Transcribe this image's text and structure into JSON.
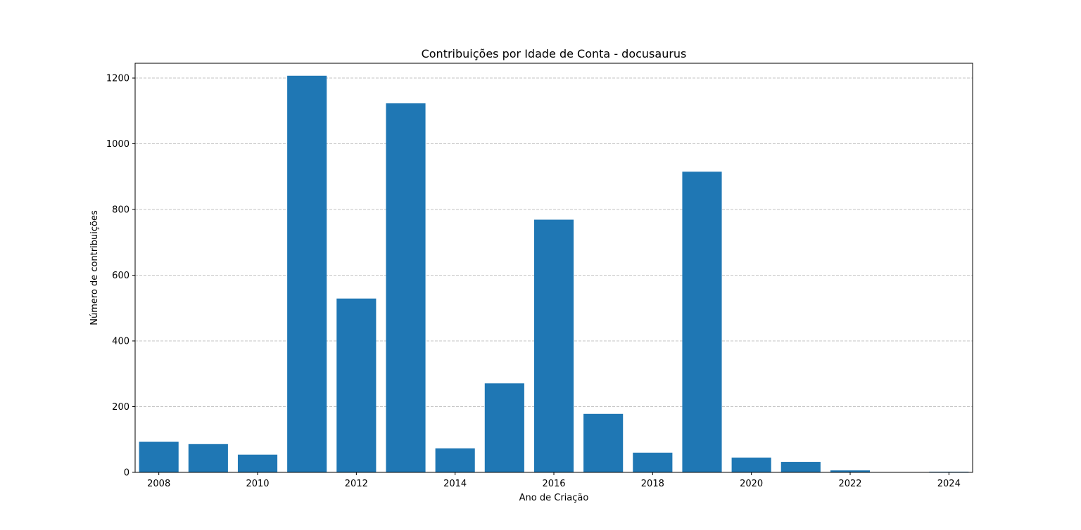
{
  "chart_data": {
    "type": "bar",
    "title": "Contribuições por Idade de Conta - docusaurus",
    "xlabel": "Ano de Criação",
    "ylabel": "Número de contribuições",
    "categories": [
      2008,
      2009,
      2010,
      2011,
      2012,
      2013,
      2014,
      2015,
      2016,
      2017,
      2018,
      2019,
      2020,
      2021,
      2022,
      2023,
      2024
    ],
    "values": [
      93,
      86,
      54,
      1207,
      529,
      1123,
      73,
      271,
      769,
      178,
      60,
      915,
      45,
      32,
      6,
      0,
      2
    ],
    "xticks": [
      "2008",
      "2010",
      "2012",
      "2014",
      "2016",
      "2018",
      "2020",
      "2022",
      "2024"
    ],
    "yticks": [
      "0",
      "200",
      "400",
      "600",
      "800",
      "1000",
      "1200"
    ],
    "ylim": [
      0,
      1245
    ],
    "grid": "y-dashed",
    "bar_color": "#1f77b4",
    "grid_color": "#b0b0b0"
  }
}
